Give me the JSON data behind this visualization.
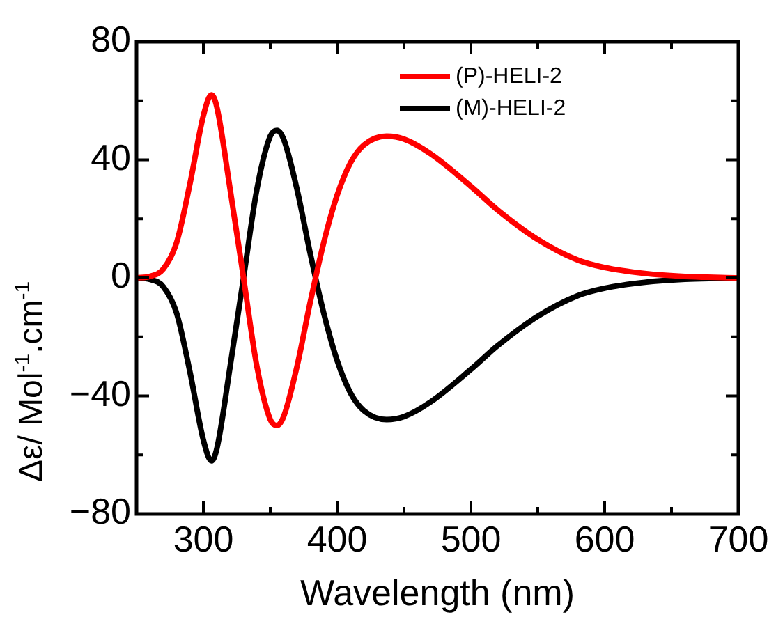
{
  "chart_data": {
    "type": "line",
    "xlabel": "Wavelength (nm)",
    "ylabel": "Δε/ Mol$^{-1}$.cm$^{-1}$",
    "xlim": [
      250,
      700
    ],
    "ylim": [
      -80,
      80
    ],
    "xticks": [
      {
        "value": 250,
        "label": null
      },
      300,
      {
        "value": 350,
        "label": null
      },
      400,
      {
        "value": 450,
        "label": null
      },
      500,
      {
        "value": 550,
        "label": null
      },
      600,
      {
        "value": 650,
        "label": null
      },
      700
    ],
    "yticks": [
      -80,
      {
        "value": -60,
        "label": null
      },
      -40,
      {
        "value": -20,
        "label": null
      },
      0,
      {
        "value": 20,
        "label": null
      },
      40,
      {
        "value": 60,
        "label": null
      },
      80
    ],
    "grid": false,
    "legend": "top right",
    "marker": "none",
    "line_style": "solid",
    "series": [
      {
        "name": "(P)-HELI-2",
        "color": "#ff0000",
        "x": [
          250,
          260,
          270,
          280,
          290,
          300,
          306,
          310,
          320,
          330,
          340,
          350,
          355,
          360,
          370,
          380,
          390,
          400,
          410,
          420,
          437,
          450,
          470,
          500,
          520,
          550,
          580,
          600,
          630,
          660,
          700
        ],
        "values": [
          0,
          0.5,
          3,
          12,
          32,
          55,
          62,
          58,
          30,
          0,
          -30,
          -48,
          -50,
          -47,
          -30,
          -8,
          12,
          28,
          39,
          45,
          48,
          47,
          42,
          31,
          23,
          13,
          6,
          3.5,
          1.5,
          0.5,
          0
        ]
      },
      {
        "name": "(M)-HELI-2",
        "color": "#000000",
        "x": [
          250,
          260,
          270,
          280,
          290,
          300,
          306,
          310,
          320,
          330,
          340,
          350,
          355,
          360,
          370,
          380,
          390,
          400,
          410,
          420,
          437,
          450,
          470,
          500,
          520,
          550,
          580,
          600,
          630,
          660,
          700
        ],
        "values": [
          0,
          -0.5,
          -3,
          -12,
          -32,
          -55,
          -62,
          -58,
          -30,
          0,
          30,
          48,
          50,
          47,
          30,
          8,
          -12,
          -28,
          -39,
          -45,
          -48,
          -47,
          -42,
          -31,
          -23,
          -13,
          -6,
          -3.5,
          -1.5,
          -0.5,
          0
        ]
      }
    ]
  }
}
